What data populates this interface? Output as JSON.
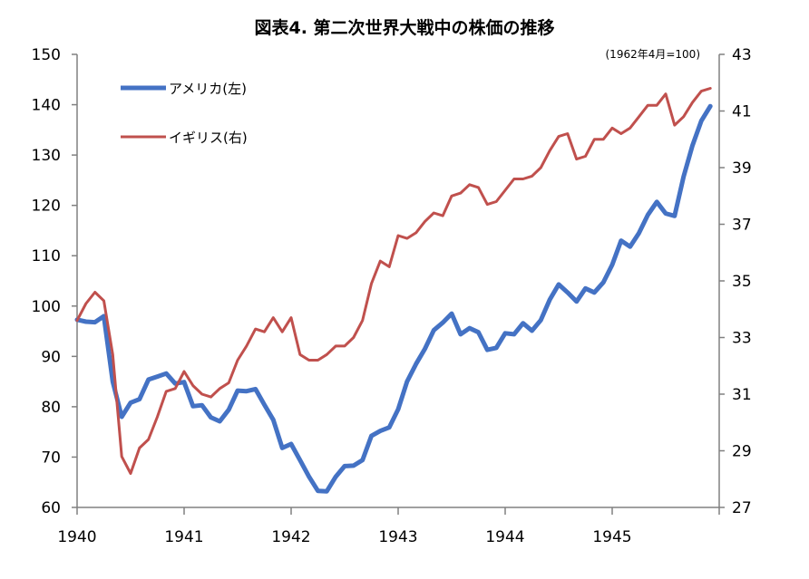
{
  "chart_data": {
    "type": "line",
    "title": "図表4. 第二次世界大戦中の株価の推移",
    "subtitle": "(1962年4月=100)",
    "xlabel": "",
    "ylabel_left": "",
    "ylabel_right": "",
    "x_ticks": [
      "1940",
      "1941",
      "1942",
      "1943",
      "1944",
      "1945"
    ],
    "xlim": [
      1940,
      1946
    ],
    "ylim_left": [
      60,
      150
    ],
    "yticks_left": [
      60,
      70,
      80,
      90,
      100,
      110,
      120,
      130,
      140,
      150
    ],
    "ylim_right": [
      27,
      43
    ],
    "yticks_right": [
      27,
      29,
      31,
      33,
      35,
      37,
      39,
      41,
      43
    ],
    "grid": false,
    "legend_position": "top-left",
    "series": [
      {
        "name": "アメリカ(左)",
        "axis": "left",
        "color": "#4472c4",
        "x": [
          1940.0,
          1940.083,
          1940.167,
          1940.25,
          1940.333,
          1940.417,
          1940.5,
          1940.583,
          1940.667,
          1940.75,
          1940.833,
          1940.917,
          1941.0,
          1941.083,
          1941.167,
          1941.25,
          1941.333,
          1941.417,
          1941.5,
          1941.583,
          1941.667,
          1941.75,
          1941.833,
          1941.917,
          1942.0,
          1942.083,
          1942.167,
          1942.25,
          1942.333,
          1942.417,
          1942.5,
          1942.583,
          1942.667,
          1942.75,
          1942.833,
          1942.917,
          1943.0,
          1943.083,
          1943.167,
          1943.25,
          1943.333,
          1943.417,
          1943.5,
          1943.583,
          1943.667,
          1943.75,
          1943.833,
          1943.917,
          1944.0,
          1944.083,
          1944.167,
          1944.25,
          1944.333,
          1944.417,
          1944.5,
          1944.583,
          1944.667,
          1944.75,
          1944.833,
          1944.917,
          1945.0,
          1945.083,
          1945.167,
          1945.25,
          1945.333,
          1945.417,
          1945.5,
          1945.583,
          1945.667,
          1945.75,
          1945.833,
          1945.917
        ],
        "values": [
          97.3,
          96.9,
          96.8,
          98.0,
          85.0,
          78.0,
          80.8,
          81.5,
          85.4,
          86.0,
          86.6,
          84.6,
          84.9,
          80.1,
          80.3,
          77.9,
          77.1,
          79.4,
          83.2,
          83.1,
          83.5,
          80.4,
          77.4,
          71.8,
          72.6,
          69.4,
          66.1,
          63.3,
          63.2,
          66.1,
          68.2,
          68.3,
          69.4,
          74.2,
          75.2,
          75.9,
          79.5,
          85.0,
          88.5,
          91.5,
          95.2,
          96.7,
          98.5,
          94.4,
          95.6,
          94.8,
          91.3,
          91.7,
          94.6,
          94.4,
          96.6,
          95.1,
          97.2,
          101.3,
          104.3,
          102.7,
          100.9,
          103.5,
          102.7,
          104.7,
          108.2,
          113.0,
          111.8,
          114.5,
          118.1,
          120.7,
          118.4,
          117.9,
          125.7,
          131.9,
          136.8,
          139.7
        ]
      },
      {
        "name": "イギリス(右)",
        "axis": "right",
        "color": "#c0504d",
        "x": [
          1940.0,
          1940.083,
          1940.167,
          1940.25,
          1940.333,
          1940.417,
          1940.5,
          1940.583,
          1940.667,
          1940.75,
          1940.833,
          1940.917,
          1941.0,
          1941.083,
          1941.167,
          1941.25,
          1941.333,
          1941.417,
          1941.5,
          1941.583,
          1941.667,
          1941.75,
          1941.833,
          1941.917,
          1942.0,
          1942.083,
          1942.167,
          1942.25,
          1942.333,
          1942.417,
          1942.5,
          1942.583,
          1942.667,
          1942.75,
          1942.833,
          1942.917,
          1943.0,
          1943.083,
          1943.167,
          1943.25,
          1943.333,
          1943.417,
          1943.5,
          1943.583,
          1943.667,
          1943.75,
          1943.833,
          1943.917,
          1944.0,
          1944.083,
          1944.167,
          1944.25,
          1944.333,
          1944.417,
          1944.5,
          1944.583,
          1944.667,
          1944.75,
          1944.833,
          1944.917,
          1945.0,
          1945.083,
          1945.167,
          1945.25,
          1945.333,
          1945.417,
          1945.5,
          1945.583,
          1945.667,
          1945.75,
          1945.833,
          1945.917
        ],
        "values": [
          33.6,
          34.2,
          34.6,
          34.3,
          32.4,
          28.8,
          28.2,
          29.1,
          29.4,
          30.2,
          31.1,
          31.2,
          31.8,
          31.3,
          31.0,
          30.9,
          31.2,
          31.4,
          32.2,
          32.7,
          33.3,
          33.2,
          33.7,
          33.2,
          33.7,
          32.4,
          32.2,
          32.2,
          32.4,
          32.7,
          32.7,
          33.0,
          33.6,
          34.9,
          35.7,
          35.5,
          36.6,
          36.5,
          36.7,
          37.1,
          37.4,
          37.3,
          38.0,
          38.1,
          38.4,
          38.3,
          37.7,
          37.8,
          38.2,
          38.6,
          38.6,
          38.7,
          39.0,
          39.6,
          40.1,
          40.2,
          39.3,
          39.4,
          40.0,
          40.0,
          40.4,
          40.2,
          40.4,
          40.8,
          41.2,
          41.2,
          41.6,
          40.5,
          40.8,
          41.3,
          41.7,
          41.8
        ]
      }
    ]
  }
}
